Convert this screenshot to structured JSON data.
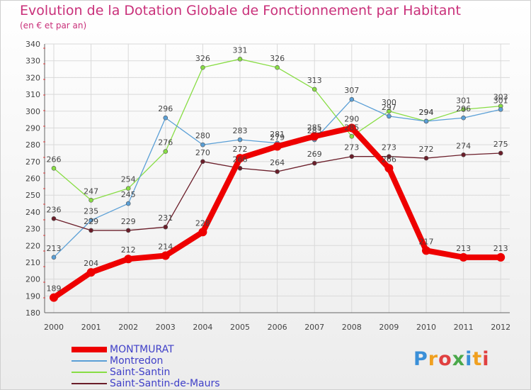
{
  "title": "Evolution de la Dotation Globale de Fonctionnement par Habitant",
  "subtitle": "(en € et par an)",
  "brand": "Proxiti",
  "chart_data": {
    "type": "line",
    "title": "Evolution de la Dotation Globale de Fonctionnement par Habitant",
    "subtitle": "(en € et par an)",
    "xlabel": "",
    "ylabel": "",
    "x": [
      "2000",
      "2001",
      "2002",
      "2003",
      "2004",
      "2005",
      "2006",
      "2007",
      "2008",
      "2009",
      "2010",
      "2011",
      "2012"
    ],
    "ylim": [
      180,
      340
    ],
    "yticks": [
      180,
      190,
      200,
      210,
      220,
      230,
      240,
      250,
      260,
      270,
      280,
      290,
      300,
      310,
      320,
      330,
      340
    ],
    "grid": true,
    "legend": "bottom-left",
    "series": [
      {
        "name": "Saint-Santin",
        "color": "#88dd44",
        "values": [
          266,
          247,
          254,
          276,
          326,
          331,
          326,
          313,
          285,
          300,
          294,
          301,
          303
        ]
      },
      {
        "name": "Montredon",
        "color": "#5a9fd6",
        "values": [
          213,
          235,
          245,
          296,
          280,
          283,
          281,
          283,
          307,
          297,
          294,
          296,
          301
        ]
      },
      {
        "name": "Saint-Santin-de-Maurs",
        "color": "#6b1e2a",
        "values": [
          236,
          229,
          229,
          231,
          270,
          266,
          264,
          269,
          273,
          273,
          272,
          274,
          275
        ]
      },
      {
        "name": "MONTMURAT",
        "color": "#ee0000",
        "values": [
          189,
          204,
          212,
          214,
          228,
          272,
          279,
          285,
          290,
          266,
          217,
          213,
          213
        ]
      }
    ],
    "legend_entries": [
      "MONTMURAT",
      "Montredon",
      "Saint-Santin",
      "Saint-Santin-de-Maurs"
    ]
  }
}
